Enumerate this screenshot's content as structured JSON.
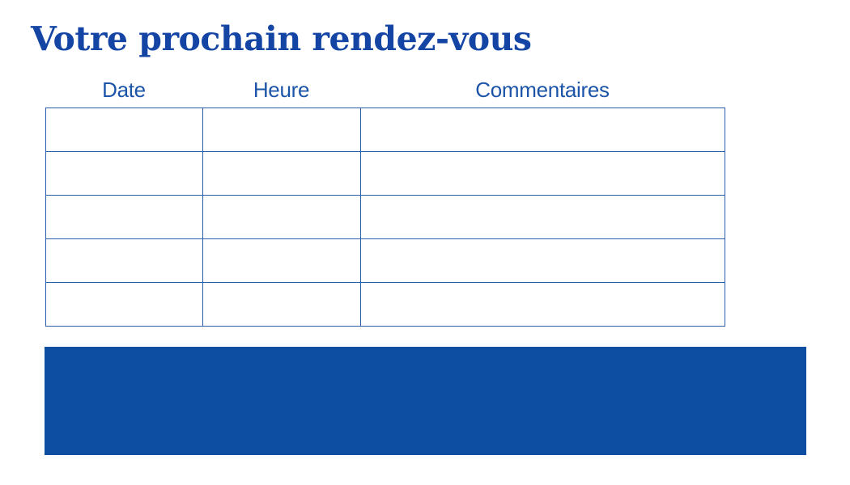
{
  "page": {
    "title": "Votre prochain rendez-vous"
  },
  "colors": {
    "title": "#1445A4",
    "header_text": "#1C54A8",
    "table_border": "#2B5CAD",
    "banner": "#0D4EA2",
    "background": "#FFFFFF"
  },
  "table": {
    "columns": [
      {
        "key": "date",
        "label": "Date"
      },
      {
        "key": "heure",
        "label": "Heure"
      },
      {
        "key": "commentaires",
        "label": "Commentaires"
      }
    ],
    "rows": [
      [
        "",
        "",
        ""
      ],
      [
        "",
        "",
        ""
      ],
      [
        "",
        "",
        ""
      ],
      [
        "",
        "",
        ""
      ],
      [
        "",
        "",
        ""
      ]
    ]
  },
  "banner": {
    "text": ""
  }
}
